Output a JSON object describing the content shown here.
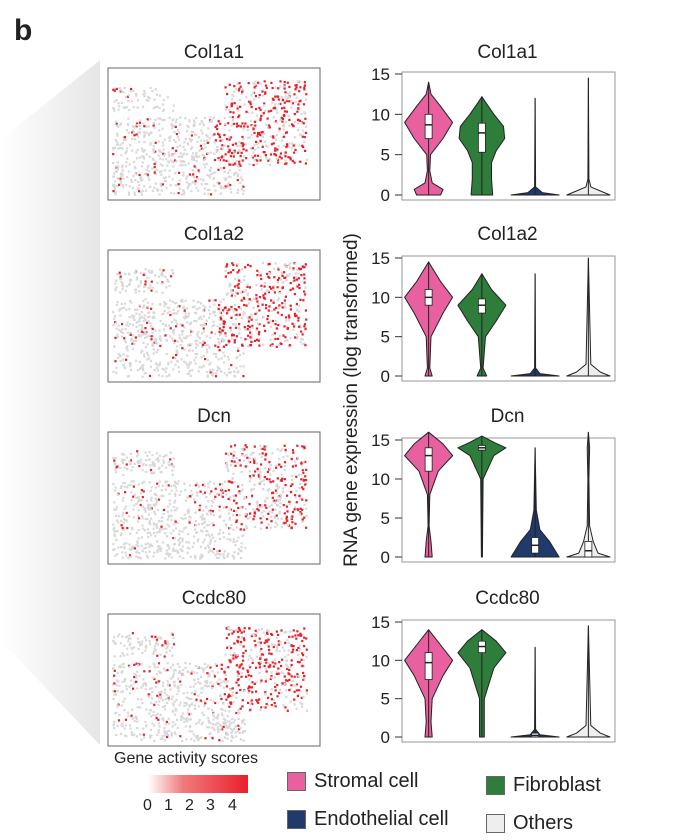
{
  "panel_label": "b",
  "colors": {
    "stromal": "#e8609f",
    "fibroblast": "#2e7d3a",
    "endothelial": "#1f3a6b",
    "others": "#eeeeee",
    "activity_high": "#e8202a"
  },
  "chart_data": [
    {
      "type": "scatter",
      "title": "Col1a1",
      "description_kind": "gene activity map"
    },
    {
      "type": "scatter",
      "title": "Col1a2",
      "description_kind": "gene activity map"
    },
    {
      "type": "scatter",
      "title": "Dcn",
      "description_kind": "gene activity map"
    },
    {
      "type": "scatter",
      "title": "Ccdc80",
      "description_kind": "gene activity map"
    },
    {
      "type": "violin",
      "title": "Col1a1",
      "ylim": [
        0,
        15
      ],
      "yticks": [
        "0",
        "5",
        "10",
        "15"
      ],
      "categories": [
        "Stromal cell",
        "Fibroblast",
        "Endothelial cell",
        "Others"
      ],
      "violins": [
        {
          "density": [
            [
              0,
              0.5
            ],
            [
              0.7,
              0.6
            ],
            [
              1.5,
              0.15
            ],
            [
              3,
              0.05
            ],
            [
              5,
              0.08
            ],
            [
              7,
              0.6
            ],
            [
              9,
              1
            ],
            [
              11,
              0.5
            ],
            [
              12.5,
              0.1
            ],
            [
              14,
              0
            ]
          ],
          "q1": 7,
          "median": 8.7,
          "q3": 10
        },
        {
          "density": [
            [
              0,
              0.45
            ],
            [
              2,
              0.4
            ],
            [
              4,
              0.4
            ],
            [
              5.5,
              0.6
            ],
            [
              7,
              0.95
            ],
            [
              8.5,
              0.9
            ],
            [
              10,
              0.5
            ],
            [
              11.5,
              0.15
            ],
            [
              12.2,
              0
            ]
          ],
          "q1": 5.3,
          "median": 7.7,
          "q3": 8.9
        },
        {
          "density": [
            [
              0,
              1
            ],
            [
              0.3,
              0.3
            ],
            [
              1,
              0.02
            ],
            [
              12,
              0
            ]
          ],
          "q1": 0,
          "median": 0,
          "q3": 0.1
        },
        {
          "density": [
            [
              0,
              0.9
            ],
            [
              0.5,
              0.5
            ],
            [
              1,
              0.1
            ],
            [
              2,
              0.02
            ],
            [
              14.5,
              0
            ]
          ],
          "q1": 0,
          "median": 0,
          "q3": 0.2
        }
      ]
    },
    {
      "type": "violin",
      "title": "Col1a2",
      "ylim": [
        0,
        15
      ],
      "yticks": [
        "0",
        "5",
        "10",
        "15"
      ],
      "categories": [
        "Stromal cell",
        "Fibroblast",
        "Endothelial cell",
        "Others"
      ],
      "violins": [
        {
          "density": [
            [
              0,
              0.15
            ],
            [
              1,
              0.05
            ],
            [
              5,
              0.1
            ],
            [
              8,
              0.6
            ],
            [
              10,
              1
            ],
            [
              12,
              0.5
            ],
            [
              14.5,
              0
            ]
          ],
          "q1": 9,
          "median": 10,
          "q3": 11
        },
        {
          "density": [
            [
              0,
              0.2
            ],
            [
              1,
              0.05
            ],
            [
              5,
              0.15
            ],
            [
              7,
              0.6
            ],
            [
              9,
              1
            ],
            [
              11,
              0.4
            ],
            [
              13,
              0
            ]
          ],
          "q1": 8,
          "median": 9,
          "q3": 9.8
        },
        {
          "density": [
            [
              0,
              1
            ],
            [
              0.3,
              0.2
            ],
            [
              1,
              0.02
            ],
            [
              13,
              0
            ]
          ],
          "q1": 0,
          "median": 0,
          "q3": 0.1
        },
        {
          "density": [
            [
              0,
              0.9
            ],
            [
              0.5,
              0.5
            ],
            [
              1.5,
              0.1
            ],
            [
              15,
              0
            ]
          ],
          "q1": 0,
          "median": 0,
          "q3": 0.2
        }
      ]
    },
    {
      "type": "violin",
      "title": "Dcn",
      "ylim": [
        0,
        15
      ],
      "yticks": [
        "0",
        "5",
        "10",
        "15"
      ],
      "categories": [
        "Stromal cell",
        "Fibroblast",
        "Endothelial cell",
        "Others"
      ],
      "violins": [
        {
          "density": [
            [
              0,
              0.15
            ],
            [
              2,
              0.1
            ],
            [
              4,
              0.02
            ],
            [
              8,
              0.05
            ],
            [
              11,
              0.4
            ],
            [
              13,
              1
            ],
            [
              14.5,
              0.6
            ],
            [
              16,
              0
            ]
          ],
          "q1": 11,
          "median": 13,
          "q3": 14
        },
        {
          "density": [
            [
              0,
              0.02
            ],
            [
              10,
              0.05
            ],
            [
              13,
              0.5
            ],
            [
              14,
              1
            ],
            [
              14.7,
              0.5
            ],
            [
              15.5,
              0
            ]
          ],
          "q1": 13.7,
          "median": 14,
          "q3": 14.3
        },
        {
          "density": [
            [
              0,
              1
            ],
            [
              1,
              0.8
            ],
            [
              2,
              0.6
            ],
            [
              3.5,
              0.2
            ],
            [
              6,
              0.05
            ],
            [
              14,
              0
            ]
          ],
          "q1": 0.5,
          "median": 1.5,
          "q3": 2.5
        },
        {
          "density": [
            [
              0,
              0.9
            ],
            [
              0.5,
              0.4
            ],
            [
              2,
              0.2
            ],
            [
              4,
              0.05
            ],
            [
              10,
              0.02
            ],
            [
              14,
              0.05
            ],
            [
              16,
              0
            ]
          ],
          "q1": 0,
          "median": 0.8,
          "q3": 2
        }
      ]
    },
    {
      "type": "violin",
      "title": "Ccdc80",
      "ylim": [
        0,
        15
      ],
      "yticks": [
        "0",
        "5",
        "10",
        "15"
      ],
      "categories": [
        "Stromal cell",
        "Fibroblast",
        "Endothelial cell",
        "Others"
      ],
      "violins": [
        {
          "density": [
            [
              0,
              0.15
            ],
            [
              2,
              0.1
            ],
            [
              5,
              0.15
            ],
            [
              8,
              0.6
            ],
            [
              10,
              1
            ],
            [
              12,
              0.5
            ],
            [
              14,
              0
            ]
          ],
          "q1": 7.5,
          "median": 9.7,
          "q3": 11
        },
        {
          "density": [
            [
              0,
              0.1
            ],
            [
              5,
              0.1
            ],
            [
              9,
              0.5
            ],
            [
              11,
              1
            ],
            [
              12.5,
              0.6
            ],
            [
              14,
              0
            ]
          ],
          "q1": 11,
          "median": 11.8,
          "q3": 12.5
        },
        {
          "density": [
            [
              0,
              1
            ],
            [
              0.3,
              0.2
            ],
            [
              1,
              0.02
            ],
            [
              11.7,
              0
            ]
          ],
          "q1": 0,
          "median": 0.2,
          "q3": 0.5
        },
        {
          "density": [
            [
              0,
              0.9
            ],
            [
              0.5,
              0.5
            ],
            [
              1.5,
              0.1
            ],
            [
              14.5,
              0
            ]
          ],
          "q1": 0,
          "median": 0,
          "q3": 0.2
        }
      ]
    }
  ],
  "ylabel": "RNA gene expression (log transformed)",
  "colorbar": {
    "title": "Gene activity scores",
    "ticks": [
      "0",
      "1",
      "2",
      "3",
      "4"
    ]
  },
  "legend": [
    {
      "label": "Stromal cell",
      "key": "stromal"
    },
    {
      "label": "Fibroblast",
      "key": "fibroblast"
    },
    {
      "label": "Endothelial cell",
      "key": "endothelial"
    },
    {
      "label": "Others",
      "key": "others"
    }
  ]
}
